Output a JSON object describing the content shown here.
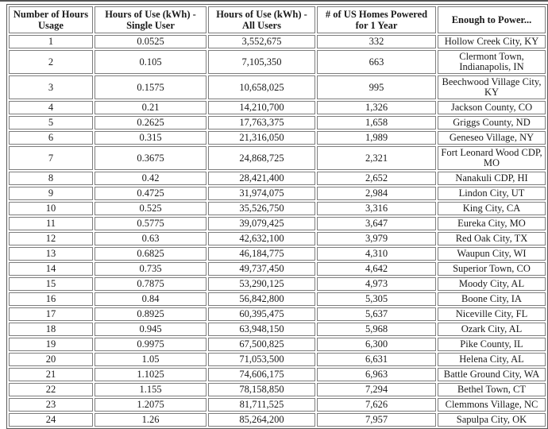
{
  "page": {
    "background_color": "#ffffff",
    "top_edge_line_color": "#555555",
    "table_outer_border_color": "#5a5a5a",
    "cell_border_color": "#7d7d7d",
    "text_color": "#1a1a1a"
  },
  "table": {
    "columns": [
      "Number of Hours Usage",
      "Hours of Use (kWh) - Single User",
      "Hours of Use (kWh) - All Users",
      "# of US Homes Powered for 1 Year",
      "Enough to Power..."
    ],
    "rows": [
      [
        "1",
        "0.0525",
        "3,552,675",
        "332",
        "Hollow Creek City, KY"
      ],
      [
        "2",
        "0.105",
        "7,105,350",
        "663",
        "Clermont Town, Indianapolis, IN"
      ],
      [
        "3",
        "0.1575",
        "10,658,025",
        "995",
        "Beechwood Village City, KY"
      ],
      [
        "4",
        "0.21",
        "14,210,700",
        "1,326",
        "Jackson County, CO"
      ],
      [
        "5",
        "0.2625",
        "17,763,375",
        "1,658",
        "Griggs County, ND"
      ],
      [
        "6",
        "0.315",
        "21,316,050",
        "1,989",
        "Geneseo Village, NY"
      ],
      [
        "7",
        "0.3675",
        "24,868,725",
        "2,321",
        "Fort Leonard Wood CDP, MO"
      ],
      [
        "8",
        "0.42",
        "28,421,400",
        "2,652",
        "Nanakuli CDP, HI"
      ],
      [
        "9",
        "0.4725",
        "31,974,075",
        "2,984",
        "Lindon City, UT"
      ],
      [
        "10",
        "0.525",
        "35,526,750",
        "3,316",
        "King City, CA"
      ],
      [
        "11",
        "0.5775",
        "39,079,425",
        "3,647",
        "Eureka City, MO"
      ],
      [
        "12",
        "0.63",
        "42,632,100",
        "3,979",
        "Red Oak City, TX"
      ],
      [
        "13",
        "0.6825",
        "46,184,775",
        "4,310",
        "Waupun City, WI"
      ],
      [
        "14",
        "0.735",
        "49,737,450",
        "4,642",
        "Superior Town, CO"
      ],
      [
        "15",
        "0.7875",
        "53,290,125",
        "4,973",
        "Moody City, AL"
      ],
      [
        "16",
        "0.84",
        "56,842,800",
        "5,305",
        "Boone City, IA"
      ],
      [
        "17",
        "0.8925",
        "60,395,475",
        "5,637",
        "Niceville City, FL"
      ],
      [
        "18",
        "0.945",
        "63,948,150",
        "5,968",
        "Ozark City, AL"
      ],
      [
        "19",
        "0.9975",
        "67,500,825",
        "6,300",
        "Pike County, IL"
      ],
      [
        "20",
        "1.05",
        "71,053,500",
        "6,631",
        "Helena City, AL"
      ],
      [
        "21",
        "1.1025",
        "74,606,175",
        "6,963",
        "Battle Ground City, WA"
      ],
      [
        "22",
        "1.155",
        "78,158,850",
        "7,294",
        "Bethel Town, CT"
      ],
      [
        "23",
        "1.2075",
        "81,711,525",
        "7,626",
        "Clemmons Village, NC"
      ],
      [
        "24",
        "1.26",
        "85,264,200",
        "7,957",
        "Sapulpa City, OK"
      ]
    ]
  }
}
